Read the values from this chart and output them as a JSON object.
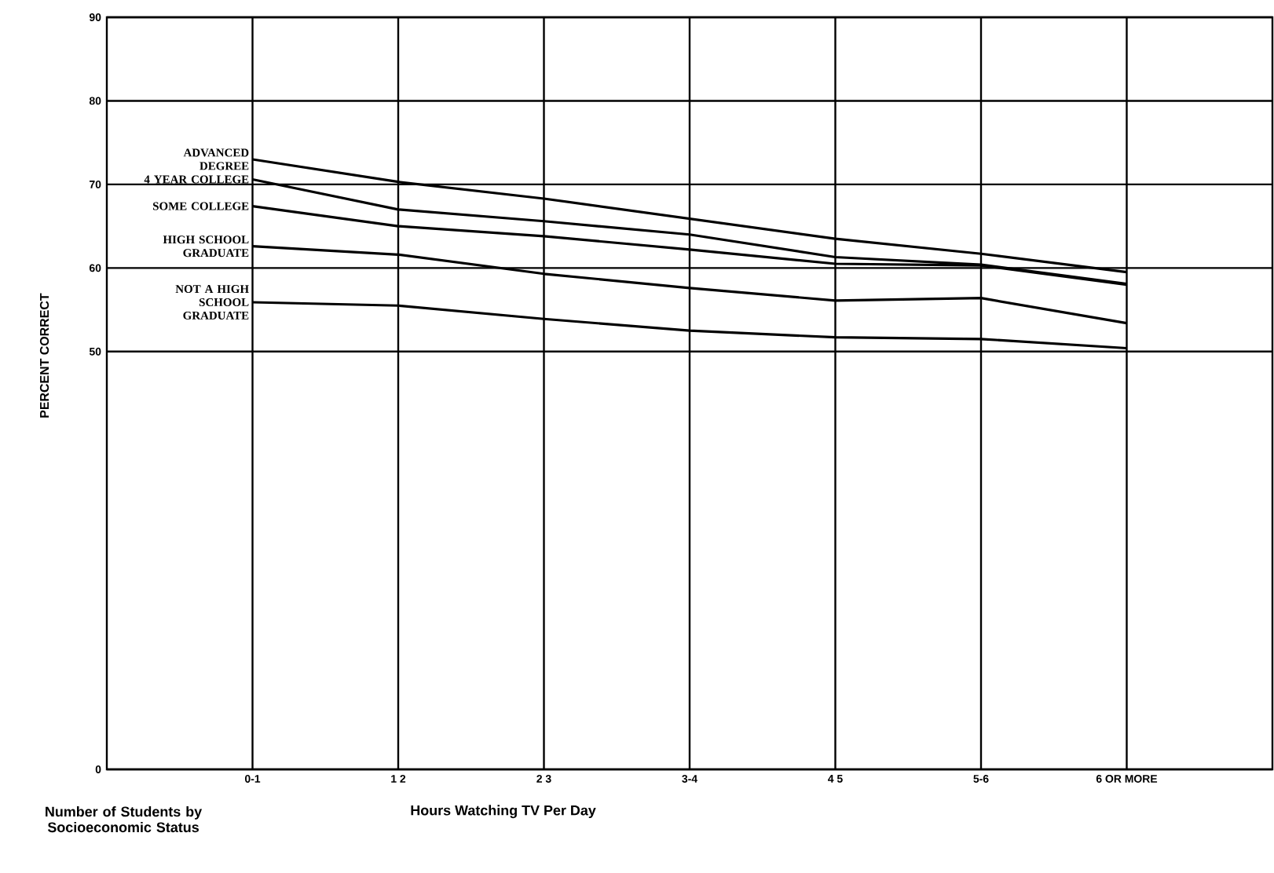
{
  "chart_data": {
    "type": "line",
    "xlabel": "Hours Watching TV Per Day",
    "ylabel": "PERCENT CORRECT",
    "categories": [
      "0-1",
      "1 2",
      "2 3",
      "3-4",
      "4 5",
      "5-6",
      "6 OR MORE"
    ],
    "series": [
      {
        "name": "ADVANCED DEGREE",
        "color": "#000000",
        "values": [
          73.0,
          70.3,
          68.3,
          65.9,
          63.5,
          61.7,
          59.5
        ]
      },
      {
        "name": "4 YEAR COLLEGE",
        "color": "#000000",
        "values": [
          70.6,
          67.0,
          65.6,
          64.0,
          61.3,
          60.4,
          58.1
        ]
      },
      {
        "name": "SOME COLLEGE",
        "color": "#000000",
        "values": [
          67.4,
          65.0,
          63.8,
          62.2,
          60.5,
          60.3,
          58.0
        ]
      },
      {
        "name": "HIGH SCHOOL GRADUATE",
        "color": "#000000",
        "values": [
          62.6,
          61.6,
          59.3,
          57.6,
          56.1,
          56.4,
          53.4
        ]
      },
      {
        "name": "NOT A HIGH SCHOOL GRADUATE",
        "color": "#000000",
        "values": [
          55.9,
          55.5,
          53.9,
          52.5,
          51.7,
          51.5,
          50.4
        ]
      }
    ],
    "ylim": [
      0,
      90
    ],
    "yticks": [
      0,
      50,
      60,
      70,
      80,
      90
    ],
    "grid": true,
    "legend": false,
    "marker": "none",
    "line_style": "solid",
    "annotations": [
      "Number of Students by Socioeconomic Status"
    ]
  }
}
